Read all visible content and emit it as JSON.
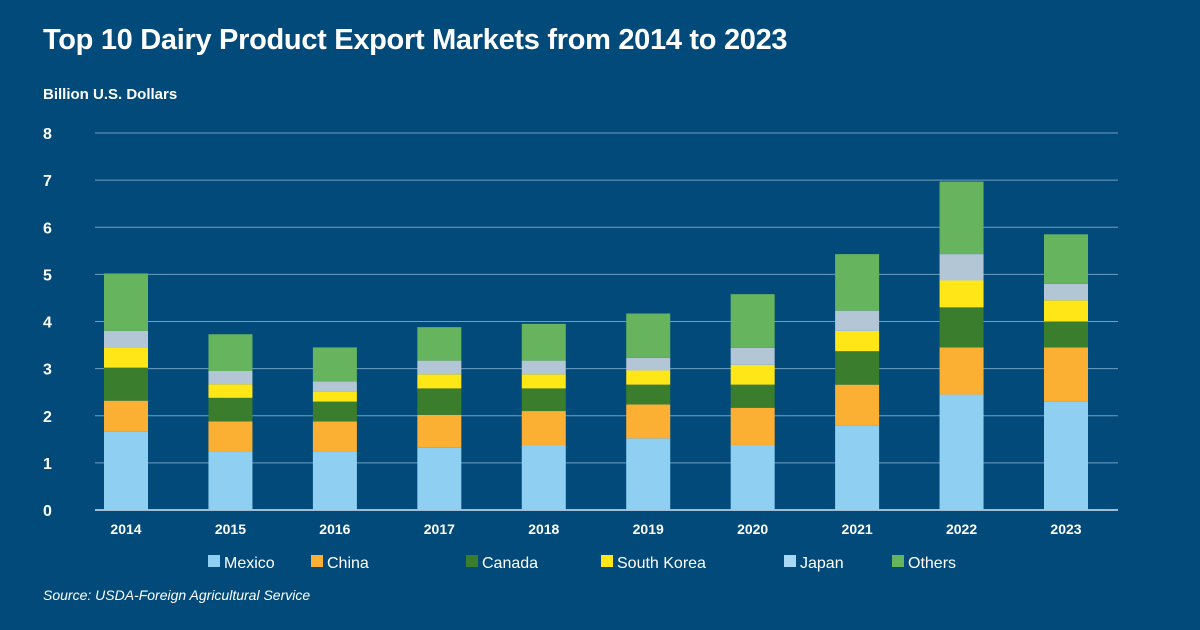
{
  "chart_data": {
    "type": "bar",
    "stacked": true,
    "title": "Top 10 Dairy Product Export Markets from 2014 to 2023",
    "ylabel": "Billion U.S. Dollars",
    "xlabel": "",
    "ylim": [
      0,
      8
    ],
    "yticks": [
      0,
      1,
      2,
      3,
      4,
      5,
      6,
      7,
      8
    ],
    "grid": true,
    "legend": "bottom",
    "categories": [
      "2014",
      "2015",
      "2016",
      "2017",
      "2018",
      "2019",
      "2020",
      "2021",
      "2022",
      "2023"
    ],
    "series": [
      {
        "name": "Mexico",
        "color": "#8fd0f2",
        "legend_color": "#8fd0f2",
        "values": [
          1.67,
          1.25,
          1.25,
          1.32,
          1.38,
          1.52,
          1.38,
          1.8,
          2.45,
          2.3
        ]
      },
      {
        "name": "China",
        "color": "#fbb034",
        "legend_color": "#fbb034",
        "values": [
          0.65,
          0.63,
          0.63,
          0.7,
          0.72,
          0.72,
          0.79,
          0.86,
          1.0,
          1.15
        ]
      },
      {
        "name": "Canada",
        "color": "#3a7d2c",
        "legend_color": "#3a7d2c",
        "values": [
          0.7,
          0.5,
          0.42,
          0.56,
          0.48,
          0.42,
          0.49,
          0.71,
          0.85,
          0.55
        ]
      },
      {
        "name": "South Korea",
        "color": "#ffe617",
        "legend_color": "#ffe617",
        "values": [
          0.43,
          0.29,
          0.22,
          0.3,
          0.3,
          0.3,
          0.42,
          0.43,
          0.57,
          0.45
        ]
      },
      {
        "name": "Japan",
        "color": "#b3c6d6",
        "legend_color": "#a8d8f5",
        "values": [
          0.35,
          0.28,
          0.21,
          0.29,
          0.29,
          0.27,
          0.36,
          0.43,
          0.56,
          0.35
        ]
      },
      {
        "name": "Others",
        "color": "#66b45e",
        "legend_color": "#66b45e",
        "values": [
          1.22,
          0.78,
          0.72,
          0.71,
          0.78,
          0.94,
          1.14,
          1.2,
          1.54,
          1.05
        ]
      }
    ],
    "source": "Source: USDA-Foreign Agricultural Service"
  },
  "colors": {
    "background": "#024a7a",
    "grid": "#6f9fc4"
  }
}
